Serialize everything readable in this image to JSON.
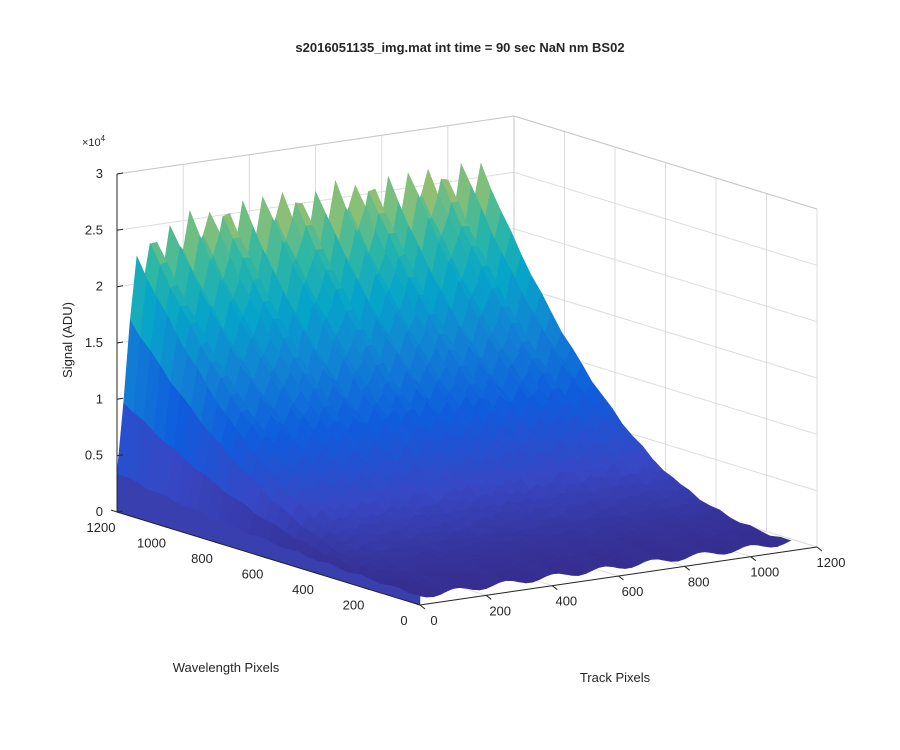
{
  "chart_data": {
    "type": "surface",
    "title": "s2016051135_img.mat int time = 90 sec  NaN nm BS02",
    "xlabel": "Track Pixels",
    "ylabel": "Wavelength Pixels",
    "zlabel": "Signal (ADU)",
    "z_exponent_label": "×10",
    "z_exponent_power": "4",
    "xlim": [
      0,
      1200
    ],
    "ylim": [
      0,
      1200
    ],
    "zlim": [
      0,
      30000
    ],
    "x_ticks": [
      "0",
      "200",
      "400",
      "600",
      "800",
      "1000",
      "1200"
    ],
    "y_ticks": [
      "0",
      "200",
      "400",
      "600",
      "800",
      "1000",
      "1200"
    ],
    "z_ticks": [
      "0",
      "0.5",
      "1",
      "1.5",
      "2",
      "2.5",
      "3"
    ],
    "grid": true,
    "colormap": "parula",
    "surface_shape": {
      "track_extent": [
        0,
        1120
      ],
      "wavelength_extent": [
        0,
        1200
      ],
      "peak_signal_profile": {
        "track": [
          0,
          50,
          100,
          200,
          300,
          400,
          500,
          600,
          700,
          800,
          900,
          1000,
          1050,
          1100,
          1120
        ],
        "signal": [
          3500,
          22000,
          24500,
          25500,
          26000,
          26200,
          26300,
          26300,
          26400,
          26400,
          26500,
          26500,
          27000,
          26000,
          24000
        ]
      },
      "signal_at_wavelength_0": 800,
      "decay_note": "signal falls off with decreasing wavelength pixel"
    }
  }
}
